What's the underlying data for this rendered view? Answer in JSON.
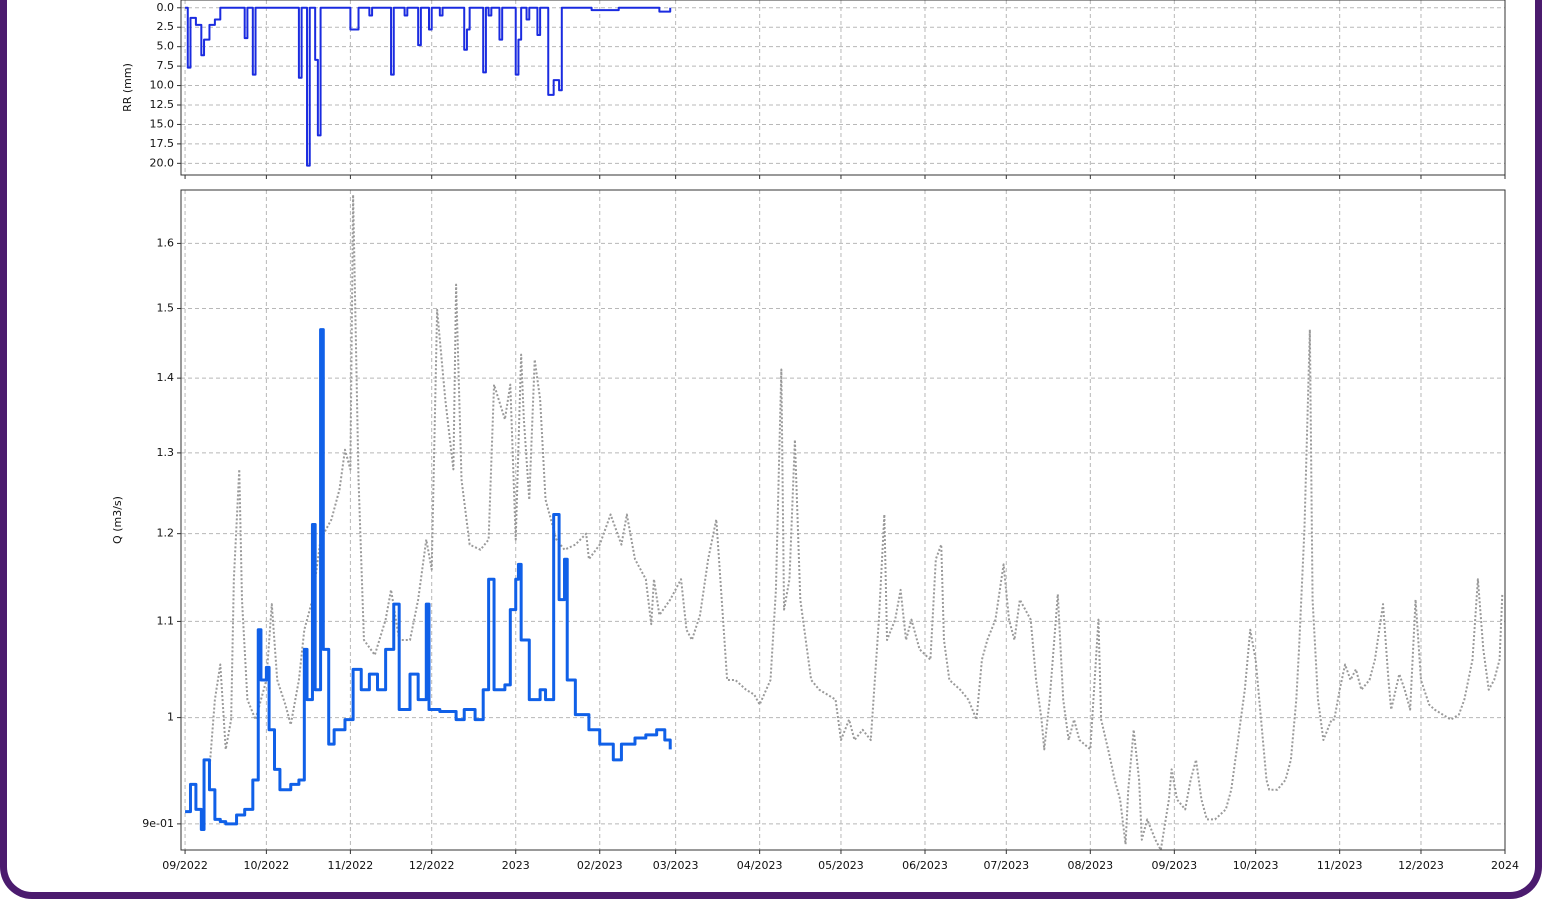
{
  "chart_data": [
    {
      "type": "line",
      "ylabel": "RR (mm)",
      "ylim": [
        21.5,
        -1.0
      ],
      "yticks": [
        {
          "value": 0,
          "label": "0.0"
        },
        2.5,
        {
          "value": 5,
          "label": "5.0"
        },
        7.5,
        {
          "value": 10,
          "label": "10.0"
        },
        12.5,
        {
          "value": 15,
          "label": "15.0"
        },
        17.5,
        {
          "value": 20,
          "label": "20.0"
        }
      ],
      "grid": true,
      "series": [
        {
          "color": "#1a2be0",
          "drawstyle": "steps-post",
          "linewidth": 2,
          "x": [
            0,
            1,
            2,
            4,
            6,
            7,
            9,
            11,
            13,
            22,
            23,
            25,
            26,
            42,
            43,
            45,
            46,
            48,
            49,
            50,
            61,
            63,
            64,
            68,
            69,
            76,
            77,
            81,
            82,
            86,
            87,
            90,
            91,
            94,
            95,
            103,
            104,
            105,
            110,
            111,
            112,
            113,
            116,
            117,
            122,
            123,
            124,
            126,
            127,
            130,
            131,
            134,
            136,
            138,
            139,
            150,
            160,
            175,
            179
          ],
          "values": [
            0,
            7.7,
            1.3,
            2.2,
            6.1,
            4.1,
            2.2,
            1.5,
            0,
            3.9,
            0,
            8.6,
            0,
            9.0,
            0,
            20.3,
            0,
            6.7,
            16.4,
            0,
            2.8,
            2.8,
            0,
            1.0,
            0,
            8.6,
            0,
            1.0,
            0,
            4.8,
            0,
            2.8,
            0,
            1.0,
            0,
            5.4,
            2.8,
            0,
            8.3,
            0,
            1.0,
            0,
            4.1,
            0,
            8.6,
            4.1,
            0,
            1.5,
            0,
            3.5,
            0,
            11.2,
            9.3,
            10.6,
            0,
            0.3,
            0,
            0.5,
            0
          ]
        }
      ]
    },
    {
      "type": "line",
      "ylabel": "Q (m3/s)",
      "yscale": "log",
      "ylim": [
        0.877,
        1.687
      ],
      "yticks": [
        {
          "value": 0.9,
          "label": "9e-01"
        },
        1,
        1.1,
        1.2,
        1.3,
        1.4,
        1.5,
        1.6
      ],
      "xlim": [
        -1.5,
        487
      ],
      "xticks": [
        {
          "value": 0,
          "label": "09/2022"
        },
        {
          "value": 30,
          "label": "10/2022"
        },
        {
          "value": 61,
          "label": "11/2022"
        },
        {
          "value": 91,
          "label": "12/2022"
        },
        {
          "value": 122,
          "label": "2023"
        },
        {
          "value": 153,
          "label": "02/2023"
        },
        {
          "value": 181,
          "label": "03/2023"
        },
        {
          "value": 212,
          "label": "04/2023"
        },
        {
          "value": 242,
          "label": "05/2023"
        },
        {
          "value": 273,
          "label": "06/2023"
        },
        {
          "value": 303,
          "label": "07/2023"
        },
        {
          "value": 334,
          "label": "08/2023"
        },
        {
          "value": 365,
          "label": "09/2023"
        },
        {
          "value": 395,
          "label": "10/2023"
        },
        {
          "value": 426,
          "label": "11/2023"
        },
        {
          "value": 456,
          "label": "12/2023"
        },
        {
          "value": 487,
          "label": "2024"
        }
      ],
      "grid": true,
      "series": [
        {
          "color": "#9a9a9a",
          "linestyle": "dotted",
          "linewidth": 2,
          "x": [
            9,
            11,
            13,
            15,
            17,
            18,
            20,
            21,
            23,
            26,
            30,
            32,
            34,
            37,
            39,
            42,
            44,
            47,
            50,
            54,
            57,
            59,
            61,
            62,
            64,
            66,
            70,
            74,
            76,
            79,
            83,
            86,
            89,
            91,
            93,
            96,
            99,
            100,
            102,
            105,
            109,
            112,
            114,
            118,
            120,
            122,
            124,
            125,
            127,
            129,
            131,
            133,
            137,
            140,
            144,
            148,
            149,
            153,
            157,
            161,
            163,
            166,
            170,
            172,
            173,
            175,
            179,
            183,
            185,
            187,
            190,
            193,
            196,
            197,
            200,
            203,
            207,
            210,
            212,
            216,
            218,
            220,
            221,
            223,
            225,
            227,
            229,
            231,
            234,
            237,
            240,
            242,
            245,
            247,
            250,
            253,
            256,
            258,
            259,
            262,
            264,
            266,
            268,
            271,
            275,
            277,
            279,
            280,
            282,
            286,
            289,
            292,
            294,
            296,
            299,
            302,
            304,
            306,
            308,
            312,
            314,
            316,
            317,
            319,
            322,
            324,
            326,
            328,
            330,
            334,
            337,
            338,
            341,
            343,
            345,
            347,
            348,
            350,
            352,
            353,
            355,
            358,
            360,
            363,
            364,
            366,
            369,
            371,
            373,
            375,
            377,
            380,
            384,
            386,
            389,
            391,
            393,
            395,
            397,
            399,
            400,
            403,
            406,
            408,
            410,
            411,
            413,
            415,
            416,
            418,
            420,
            423,
            424,
            426,
            428,
            430,
            432,
            434,
            437,
            439,
            442,
            444,
            445,
            448,
            450,
            452,
            454,
            456,
            459,
            461,
            464,
            467,
            470,
            472,
            475,
            477,
            479,
            481,
            483,
            485,
            486
          ],
          "values": [
            0.95,
            1.018,
            1.054,
            0.969,
            0.998,
            1.147,
            1.279,
            1.124,
            1.018,
            0.998,
            1.038,
            1.119,
            1.038,
            1.013,
            0.993,
            1.038,
            1.091,
            1.124,
            1.193,
            1.217,
            1.254,
            1.304,
            1.279,
            1.679,
            1.266,
            1.08,
            1.064,
            1.102,
            1.135,
            1.08,
            1.08,
            1.124,
            1.193,
            1.158,
            1.498,
            1.371,
            1.279,
            1.536,
            1.266,
            1.187,
            1.181,
            1.193,
            1.391,
            1.344,
            1.391,
            1.193,
            1.433,
            1.344,
            1.241,
            1.426,
            1.371,
            1.241,
            1.193,
            1.181,
            1.187,
            1.2,
            1.17,
            1.187,
            1.223,
            1.187,
            1.223,
            1.17,
            1.147,
            1.097,
            1.147,
            1.107,
            1.124,
            1.147,
            1.091,
            1.08,
            1.107,
            1.17,
            1.217,
            1.17,
            1.038,
            1.038,
            1.028,
            1.023,
            1.013,
            1.038,
            1.135,
            1.412,
            1.113,
            1.147,
            1.317,
            1.124,
            1.08,
            1.038,
            1.028,
            1.023,
            1.018,
            0.978,
            0.998,
            0.978,
            0.988,
            0.978,
            1.102,
            1.223,
            1.08,
            1.102,
            1.135,
            1.08,
            1.102,
            1.07,
            1.059,
            1.17,
            1.187,
            1.08,
            1.038,
            1.028,
            1.018,
            0.998,
            1.059,
            1.08,
            1.102,
            1.164,
            1.102,
            1.08,
            1.124,
            1.102,
            1.038,
            0.998,
            0.969,
            1.018,
            1.13,
            1.018,
            0.978,
            0.998,
            0.978,
            0.969,
            1.102,
            0.998,
            0.964,
            0.94,
            0.922,
            0.882,
            0.931,
            0.988,
            0.94,
            0.886,
            0.904,
            0.886,
            0.877,
            0.922,
            0.95,
            0.922,
            0.913,
            0.94,
            0.959,
            0.922,
            0.904,
            0.904,
            0.913,
            0.931,
            0.988,
            1.028,
            1.091,
            1.059,
            0.998,
            0.94,
            0.931,
            0.931,
            0.94,
            0.959,
            1.018,
            1.07,
            1.205,
            1.469,
            1.124,
            1.018,
            0.978,
            0.998,
            0.998,
            1.028,
            1.054,
            1.038,
            1.049,
            1.028,
            1.038,
            1.059,
            1.119,
            1.038,
            1.008,
            1.044,
            1.028,
            1.008,
            1.124,
            1.038,
            1.013,
            1.008,
            1.003,
            0.998,
            1.003,
            1.018,
            1.059,
            1.147,
            1.07,
            1.028,
            1.038,
            1.059,
            1.13
          ]
        },
        {
          "color": "#1060e8",
          "drawstyle": "steps-post",
          "linewidth": 3,
          "x": [
            0,
            2,
            4,
            6,
            7,
            9,
            11,
            13,
            15,
            19,
            22,
            25,
            27,
            28,
            30,
            31,
            33,
            35,
            39,
            42,
            44,
            45,
            47,
            48,
            50,
            51,
            53,
            55,
            59,
            62,
            65,
            68,
            71,
            74,
            77,
            79,
            83,
            86,
            89,
            90,
            94,
            100,
            103,
            107,
            110,
            112,
            114,
            118,
            120,
            122,
            123,
            124,
            127,
            131,
            133,
            136,
            138,
            140,
            141,
            144,
            149,
            153,
            158,
            161,
            166,
            170,
            174,
            177,
            179
          ],
          "values": [
            0.911,
            0.936,
            0.913,
            0.895,
            0.959,
            0.931,
            0.904,
            0.902,
            0.9,
            0.908,
            0.913,
            0.94,
            1.091,
            1.038,
            1.051,
            0.988,
            0.95,
            0.931,
            0.936,
            0.94,
            1.07,
            1.018,
            1.211,
            1.028,
            1.469,
            1.07,
            0.974,
            0.988,
            0.998,
            1.049,
            1.028,
            1.044,
            1.028,
            1.07,
            1.119,
            1.008,
            1.044,
            1.018,
            1.119,
            1.008,
            1.006,
            0.998,
            1.008,
            0.998,
            1.028,
            1.147,
            1.028,
            1.033,
            1.113,
            1.147,
            1.164,
            1.08,
            1.018,
            1.028,
            1.018,
            1.223,
            1.124,
            1.17,
            1.038,
            1.003,
            0.988,
            0.974,
            0.959,
            0.974,
            0.98,
            0.983,
            0.988,
            0.978,
            0.969
          ]
        }
      ]
    }
  ]
}
